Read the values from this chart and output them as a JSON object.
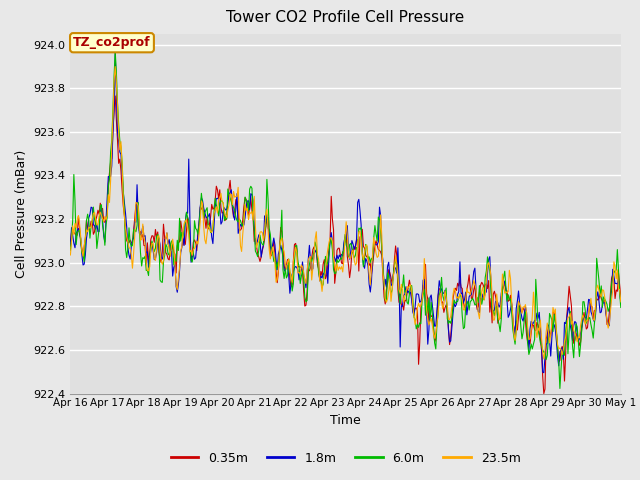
{
  "title": "Tower CO2 Profile Cell Pressure",
  "xlabel": "Time",
  "ylabel": "Cell Pressure (mBar)",
  "ylim": [
    922.4,
    924.05
  ],
  "series_labels": [
    "0.35m",
    "1.8m",
    "6.0m",
    "23.5m"
  ],
  "series_colors": [
    "#cc0000",
    "#0000cc",
    "#00bb00",
    "#ffaa00"
  ],
  "annotation_text": "TZ_co2prof",
  "annotation_bg": "#ffffcc",
  "annotation_border": "#cc8800",
  "annotation_text_color": "#aa0000",
  "fig_bg_color": "#e8e8e8",
  "plot_bg_color": "#e0e0e0",
  "grid_color": "#ffffff",
  "tick_labels": [
    "Apr 16",
    "Apr 17",
    "Apr 18",
    "Apr 19",
    "Apr 20",
    "Apr 21",
    "Apr 22",
    "Apr 23",
    "Apr 24",
    "Apr 25",
    "Apr 26",
    "Apr 27",
    "Apr 28",
    "Apr 29",
    "Apr 30",
    "May 1"
  ],
  "num_points": 480,
  "base_pressure": 923.05,
  "line_width": 0.8
}
